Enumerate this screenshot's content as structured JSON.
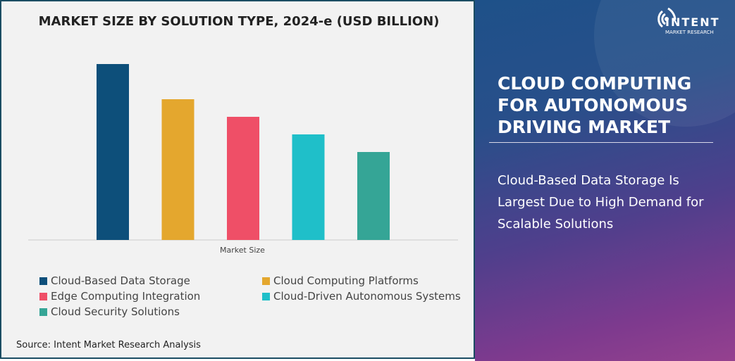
{
  "chart_data": {
    "type": "bar",
    "title": "MARKET SIZE BY SOLUTION TYPE, 2024-e (USD BILLION)",
    "xlabel": "Market Size",
    "ylabel": "",
    "categories": [
      "Cloud-Based Data Storage",
      "Cloud Computing Platforms",
      "Edge Computing Integration",
      "Cloud-Driven Autonomous Systems",
      "Cloud Security Solutions"
    ],
    "values": [
      100,
      80,
      70,
      60,
      50
    ],
    "colors": [
      "#0d4f7a",
      "#e4a72e",
      "#ef4f67",
      "#1fbfc9",
      "#35a596"
    ],
    "ylim": [
      0,
      100
    ],
    "grid": false,
    "legend_placement": "bottom"
  },
  "source": "Source: Intent Market Research Analysis",
  "right_panel": {
    "logo_brand": "INTENT",
    "logo_sub": "MARKET RESEARCH",
    "heading": "CLOUD COMPUTING FOR AUTONOMOUS DRIVING MARKET",
    "description": "Cloud-Based Data Storage Is Largest Due to High Demand for Scalable Solutions"
  }
}
